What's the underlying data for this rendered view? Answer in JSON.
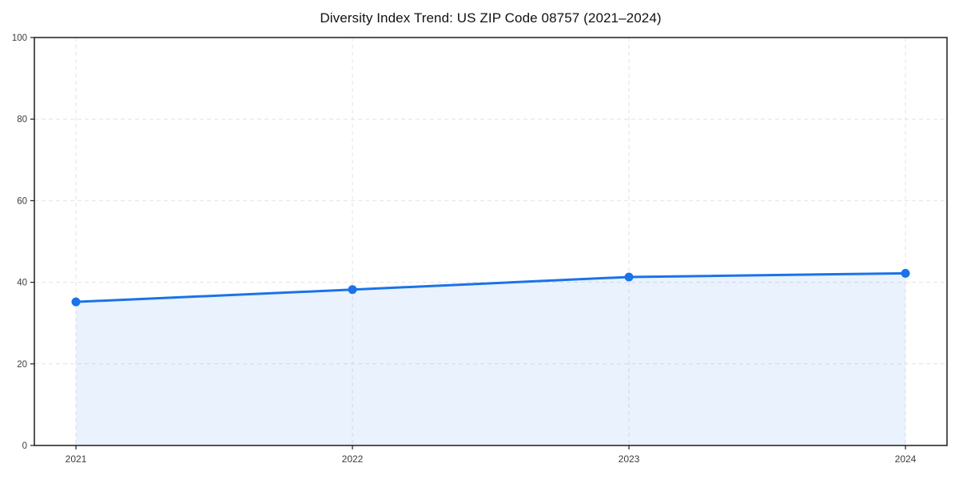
{
  "page": {
    "background": "#ffffff"
  },
  "chart_data": {
    "type": "line",
    "title": "Diversity Index Trend: US ZIP Code 08757 (2021–2024)",
    "categories": [
      "2021",
      "2022",
      "2023",
      "2024"
    ],
    "series": [
      {
        "name": "Diversity Index",
        "values": [
          35.2,
          38.2,
          41.3,
          42.2
        ]
      }
    ],
    "xlabel": "",
    "ylabel": "",
    "ylim": [
      0,
      100
    ],
    "yticks": [
      0,
      20,
      40,
      60,
      80,
      100
    ],
    "grid": true,
    "grid_style": "dashed",
    "legend_position": "none",
    "marker": "circle",
    "area_fill": true,
    "colors": {
      "line": "#1a73e8",
      "marker": "#1a73e8",
      "area_fill": "#1a73e8",
      "area_opacity": 0.09,
      "grid": "#e3e3e3",
      "spine": "#1c1c1c",
      "tick_label": "#3c3c3c",
      "title": "#111111",
      "background": "#ffffff"
    }
  }
}
